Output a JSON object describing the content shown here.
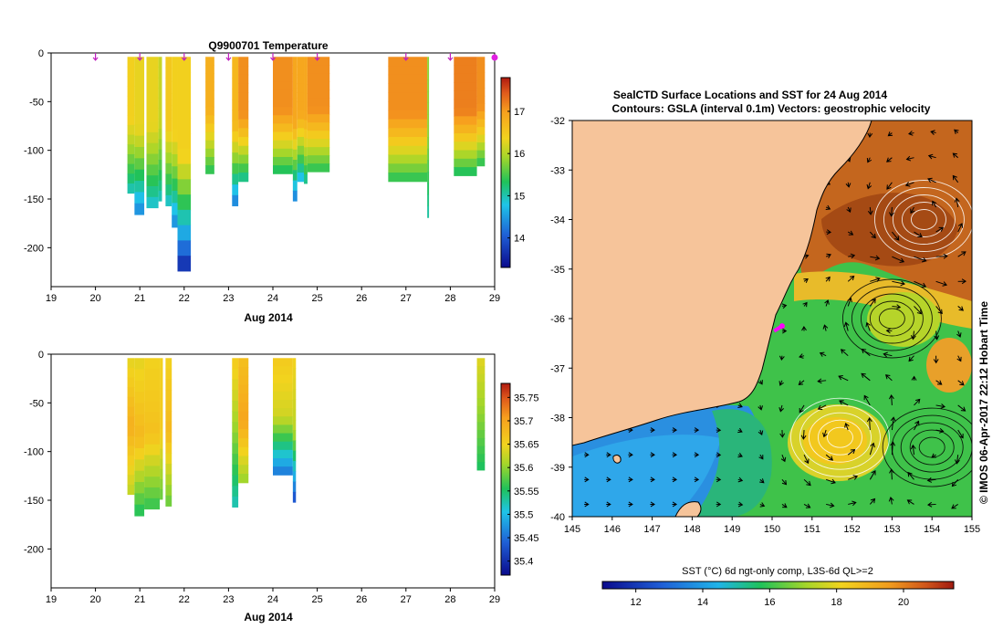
{
  "chart_data": [
    {
      "type": "heatmap",
      "title": "Q9900701  Temperature",
      "xlabel": "Aug 2014",
      "ylabel": "",
      "x_ticks": [
        "19",
        "20",
        "21",
        "22",
        "23",
        "24",
        "25",
        "26",
        "27",
        "28",
        "29"
      ],
      "y_ticks": [
        "0",
        "-50",
        "-100",
        "-150",
        "-200"
      ],
      "xlim": [
        19,
        29
      ],
      "ylim": [
        -240,
        0
      ],
      "colorbar": {
        "ticks": [
          "14",
          "15",
          "16",
          "17"
        ],
        "range": [
          13.3,
          17.8
        ]
      },
      "surface_markers_day": [
        20.0,
        21.0,
        22.0,
        23.0,
        24.0,
        25.0,
        27.0,
        28.0,
        29.0
      ],
      "profiles": [
        {
          "start": 20.72,
          "end": 20.88,
          "depth": -140,
          "min": 14.9,
          "surface": 16.4
        },
        {
          "start": 20.88,
          "end": 21.1,
          "depth": -162,
          "min": 14.3,
          "surface": 16.3
        },
        {
          "start": 21.15,
          "end": 21.42,
          "depth": -155,
          "min": 14.8,
          "surface": 16.3
        },
        {
          "start": 21.42,
          "end": 21.5,
          "depth": -148,
          "min": 14.9,
          "surface": 16.1
        },
        {
          "start": 21.58,
          "end": 21.72,
          "depth": -153,
          "min": 14.8,
          "surface": 16.5
        },
        {
          "start": 21.72,
          "end": 21.85,
          "depth": -175,
          "min": 14.3,
          "surface": 16.4
        },
        {
          "start": 21.85,
          "end": 22.15,
          "depth": -220,
          "min": 13.5,
          "surface": 16.4
        },
        {
          "start": 22.48,
          "end": 22.68,
          "depth": -120,
          "min": 15.3,
          "surface": 16.8
        },
        {
          "start": 23.08,
          "end": 23.22,
          "depth": -153,
          "min": 14.2,
          "surface": 16.7
        },
        {
          "start": 23.22,
          "end": 23.45,
          "depth": -128,
          "min": 15.0,
          "surface": 17.1
        },
        {
          "start": 24.0,
          "end": 24.45,
          "depth": -120,
          "min": 15.2,
          "surface": 17.1
        },
        {
          "start": 24.45,
          "end": 24.55,
          "depth": -148,
          "min": 14.2,
          "surface": 16.9
        },
        {
          "start": 24.55,
          "end": 24.7,
          "depth": -128,
          "min": 14.6,
          "surface": 16.9
        },
        {
          "start": 24.7,
          "end": 24.78,
          "depth": -130,
          "min": 15.0,
          "surface": 16.9
        },
        {
          "start": 24.78,
          "end": 25.28,
          "depth": -118,
          "min": 15.3,
          "surface": 17.1
        },
        {
          "start": 26.6,
          "end": 27.48,
          "depth": -128,
          "min": 15.3,
          "surface": 17.1
        },
        {
          "start": 27.48,
          "end": 27.52,
          "depth": -165,
          "min": 15.0,
          "surface": 15.8
        },
        {
          "start": 28.08,
          "end": 28.6,
          "depth": -122,
          "min": 15.2,
          "surface": 17.2
        },
        {
          "start": 28.6,
          "end": 28.78,
          "depth": -112,
          "min": 15.3,
          "surface": 17.1
        }
      ]
    },
    {
      "type": "heatmap",
      "title": "",
      "xlabel": "Aug 2014",
      "ylabel": "",
      "x_ticks": [
        "19",
        "20",
        "21",
        "22",
        "23",
        "24",
        "25",
        "26",
        "27",
        "28",
        "29"
      ],
      "y_ticks": [
        "0",
        "-50",
        "-100",
        "-150",
        "-200"
      ],
      "xlim": [
        19,
        29
      ],
      "ylim": [
        -240,
        0
      ],
      "colorbar": {
        "ticks": [
          "35.4",
          "35.45",
          "35.5",
          "35.55",
          "35.6",
          "35.65",
          "35.7",
          "35.75"
        ],
        "range": [
          35.37,
          35.78
        ]
      },
      "profiles": [
        {
          "start": 20.72,
          "end": 20.88,
          "depth": -140,
          "min": 35.62,
          "surface": 35.64,
          "mid": 35.69
        },
        {
          "start": 20.88,
          "end": 21.1,
          "depth": -162,
          "min": 35.55,
          "surface": 35.64,
          "mid": 35.68
        },
        {
          "start": 21.1,
          "end": 21.45,
          "depth": -155,
          "min": 35.56,
          "surface": 35.65,
          "mid": 35.67
        },
        {
          "start": 21.45,
          "end": 21.52,
          "depth": -145,
          "min": 35.58,
          "surface": 35.65,
          "mid": 35.66
        },
        {
          "start": 21.58,
          "end": 21.72,
          "depth": -152,
          "min": 35.58,
          "surface": 35.65,
          "mid": 35.68
        },
        {
          "start": 23.08,
          "end": 23.22,
          "depth": -153,
          "min": 35.52,
          "surface": 35.66,
          "mid": 35.6
        },
        {
          "start": 23.22,
          "end": 23.45,
          "depth": -128,
          "min": 35.6,
          "surface": 35.67,
          "mid": 35.7
        },
        {
          "start": 24.0,
          "end": 24.45,
          "depth": -120,
          "min": 35.45,
          "surface": 35.66,
          "mid": 35.63
        },
        {
          "start": 24.45,
          "end": 24.52,
          "depth": -148,
          "min": 35.42,
          "surface": 35.65,
          "mid": 35.62
        },
        {
          "start": 28.6,
          "end": 28.78,
          "depth": -115,
          "min": 35.55,
          "surface": 35.64,
          "mid": 35.6
        }
      ]
    },
    {
      "type": "heatmap",
      "title": "SealCTD Surface Locations and SST for 24 Aug 2014",
      "subtitle": "Contours: GSLA (interval 0.1m) Vectors: geostrophic velocity",
      "xlabel": "",
      "ylabel": "",
      "x_ticks": [
        "145",
        "146",
        "147",
        "148",
        "149",
        "150",
        "151",
        "152",
        "153",
        "154",
        "155"
      ],
      "y_ticks": [
        "-32",
        "-33",
        "-34",
        "-35",
        "-36",
        "-37",
        "-38",
        "-39",
        "-40"
      ],
      "xlim": [
        145,
        155
      ],
      "ylim": [
        -40,
        -32
      ],
      "colorbar": {
        "label": "SST (°C) 6d ngt-only comp, L3S-6d QL>=2",
        "ticks": [
          "12",
          "14",
          "16",
          "18",
          "20"
        ],
        "range": [
          11,
          21.5
        ]
      },
      "seal_track": [
        [
          150.25,
          -36.15
        ],
        [
          150.05,
          -36.25
        ]
      ],
      "eddies": [
        {
          "lon": 153.8,
          "lat": -34.0,
          "sign": "warm"
        },
        {
          "lon": 153.0,
          "lat": -36.0,
          "sign": "cold"
        },
        {
          "lon": 151.7,
          "lat": -38.4,
          "sign": "warm"
        },
        {
          "lon": 154.0,
          "lat": -38.6,
          "sign": "cold"
        }
      ],
      "side_note": "© IMOS 06-Apr-2017 22:12 Hobart Time"
    }
  ]
}
